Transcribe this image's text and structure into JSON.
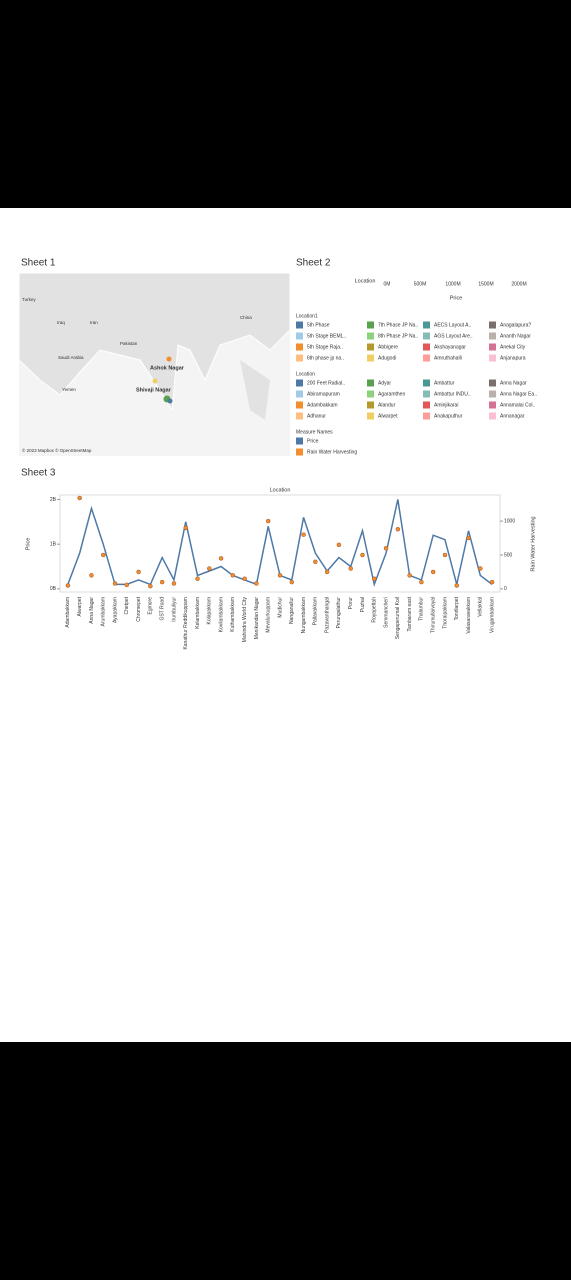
{
  "sheets": {
    "sheet1": {
      "title": "Sheet 1",
      "map_labels": [
        "Turkey",
        "Iraq",
        "Iran",
        "Pakistan",
        "China",
        "Saudi Arabia",
        "Yemen"
      ],
      "points": [
        "Ashok Nagar",
        "Shivaji Nagar"
      ],
      "attribution": "© 2023 Mapbox © OpenStreetMap"
    },
    "sheet2": {
      "title": "Sheet 2",
      "axis_title": "Location",
      "axis_ticks": [
        {
          "value": 0,
          "label": "0M"
        },
        {
          "value": 500,
          "label": "500M"
        },
        {
          "value": 1000,
          "label": "1000M"
        },
        {
          "value": 1500,
          "label": "1500M"
        },
        {
          "value": 2000,
          "label": "2000M"
        }
      ],
      "axis_label": "Price",
      "legends": [
        {
          "title": "Location1",
          "items": [
            {
              "label": "5th Phase",
              "color": "#4e79a7"
            },
            {
              "label": "7th Phase JP Na..",
              "color": "#59a14f"
            },
            {
              "label": "AECS Layout A..",
              "color": "#499894"
            },
            {
              "label": "Anagalapura?",
              "color": "#79706e"
            },
            {
              "label": "5th Stage BEML..",
              "color": "#a0cbe8"
            },
            {
              "label": "8th Phase JP Na..",
              "color": "#8cd17d"
            },
            {
              "label": "AGS Layout Are..",
              "color": "#86bcb6"
            },
            {
              "label": "Ananth Nagar",
              "color": "#bab0ac"
            },
            {
              "label": "5th Stage Raja..",
              "color": "#f28e2b"
            },
            {
              "label": "Abbigere",
              "color": "#b6992d"
            },
            {
              "label": "Akshayanagar",
              "color": "#e15759"
            },
            {
              "label": "Anekal City",
              "color": "#d37295"
            },
            {
              "label": "6th phase jp na..",
              "color": "#ffbe7d"
            },
            {
              "label": "Adugodi",
              "color": "#f1ce63"
            },
            {
              "label": "Amruthahalli",
              "color": "#ff9d9a"
            },
            {
              "label": "Anjanapura",
              "color": "#fabfd2"
            }
          ]
        },
        {
          "title": "Location",
          "items": [
            {
              "label": "200 Feet Radial..",
              "color": "#4e79a7"
            },
            {
              "label": "Adyar",
              "color": "#59a14f"
            },
            {
              "label": "Ambattur",
              "color": "#499894"
            },
            {
              "label": "Anna Nagar",
              "color": "#79706e"
            },
            {
              "label": "Abiramapuram",
              "color": "#a0cbe8"
            },
            {
              "label": "Agaramthen",
              "color": "#8cd17d"
            },
            {
              "label": "Ambattur INDU..",
              "color": "#86bcb6"
            },
            {
              "label": "Anna Nagar Ea..",
              "color": "#bab0ac"
            },
            {
              "label": "Adambakkam",
              "color": "#f28e2b"
            },
            {
              "label": "Alandur",
              "color": "#b6992d"
            },
            {
              "label": "Aminjikarai",
              "color": "#e15759"
            },
            {
              "label": "Annamalai Col..",
              "color": "#d37295"
            },
            {
              "label": "Adhanur",
              "color": "#ffbe7d"
            },
            {
              "label": "Alwarpet",
              "color": "#f1ce63"
            },
            {
              "label": "Anakaputhur",
              "color": "#ff9d9a"
            },
            {
              "label": "Annanagar",
              "color": "#fabfd2"
            }
          ]
        },
        {
          "title": "Measure Names",
          "items": [
            {
              "label": "Price",
              "color": "#4e79a7"
            },
            {
              "label": "Rain Water Harvesting",
              "color": "#f28e2b"
            }
          ]
        }
      ]
    }
  },
  "chart_data": {
    "type": "line",
    "title": "Sheet 3",
    "x_label": "Location",
    "y_label": "Price",
    "y2_label": "Rain Water Harvesting",
    "categories": [
      "Adambakkam",
      "Alwarpet",
      "Anna Nagar",
      "Arumbakkam",
      "Ayapakkam",
      "Chetpet",
      "Chromepet",
      "Egmore",
      "GST Road",
      "Irumbuliyur",
      "Kanathur Reddikuppam",
      "Kelambakkam",
      "Kolapakkam",
      "Kovilambakkam",
      "Kuthambakkam",
      "Mahindra World City",
      "Manikandan Nagar",
      "Mevalurkuppam",
      "Mudichur",
      "Nanganallur",
      "Nungambakkam",
      "Pallavakkam",
      "Pazavanthangal",
      "Perungalathur",
      "Porur",
      "Puzhal",
      "Royapettah",
      "Semmancheri",
      "Sengaperumal Koil",
      "Tambaram east",
      "Thalambur",
      "Thirumullaivoyal",
      "Thoraipakkam",
      "Tondiarpet",
      "Valasaravakkam",
      "Vellakkal",
      "Virugambakkam"
    ],
    "series": [
      {
        "name": "Price",
        "color": "#4e79a7",
        "values": [
          100000000.0,
          800000000.0,
          1800000000.0,
          1000000000.0,
          100000000.0,
          100000000.0,
          200000000.0,
          100000000.0,
          700000000.0,
          200000000.0,
          1500000000.0,
          300000000.0,
          400000000.0,
          500000000.0,
          300000000.0,
          200000000.0,
          100000000.0,
          1400000000.0,
          300000000.0,
          200000000.0,
          1600000000.0,
          800000000.0,
          400000000.0,
          700000000.0,
          500000000.0,
          1300000000.0,
          100000000.0,
          800000000.0,
          2000000000.0,
          300000000.0,
          200000000.0,
          1200000000.0,
          1100000000.0,
          100000000.0,
          1300000000.0,
          300000000.0,
          100000000.0
        ]
      },
      {
        "name": "Rain Water Harvesting",
        "color": "#f28e2b",
        "axis": "y2",
        "values": [
          50,
          1340,
          200,
          500,
          80,
          60,
          250,
          40,
          100,
          80,
          900,
          150,
          300,
          450,
          200,
          150,
          80,
          1000,
          200,
          100,
          800,
          400,
          250,
          650,
          300,
          500,
          150,
          600,
          880,
          200,
          100,
          250,
          500,
          50,
          750,
          300,
          100
        ]
      }
    ],
    "ylim": [
      -70000000.0,
      2100000000.0
    ],
    "yticks": [
      {
        "value": 0,
        "label": "0B"
      },
      {
        "value": 1000000000.0,
        "label": "1B"
      },
      {
        "value": 2000000000.0,
        "label": "2B"
      }
    ],
    "y2lim": [
      -46,
      1385
    ],
    "y2ticks": [
      0,
      500,
      1000
    ]
  }
}
